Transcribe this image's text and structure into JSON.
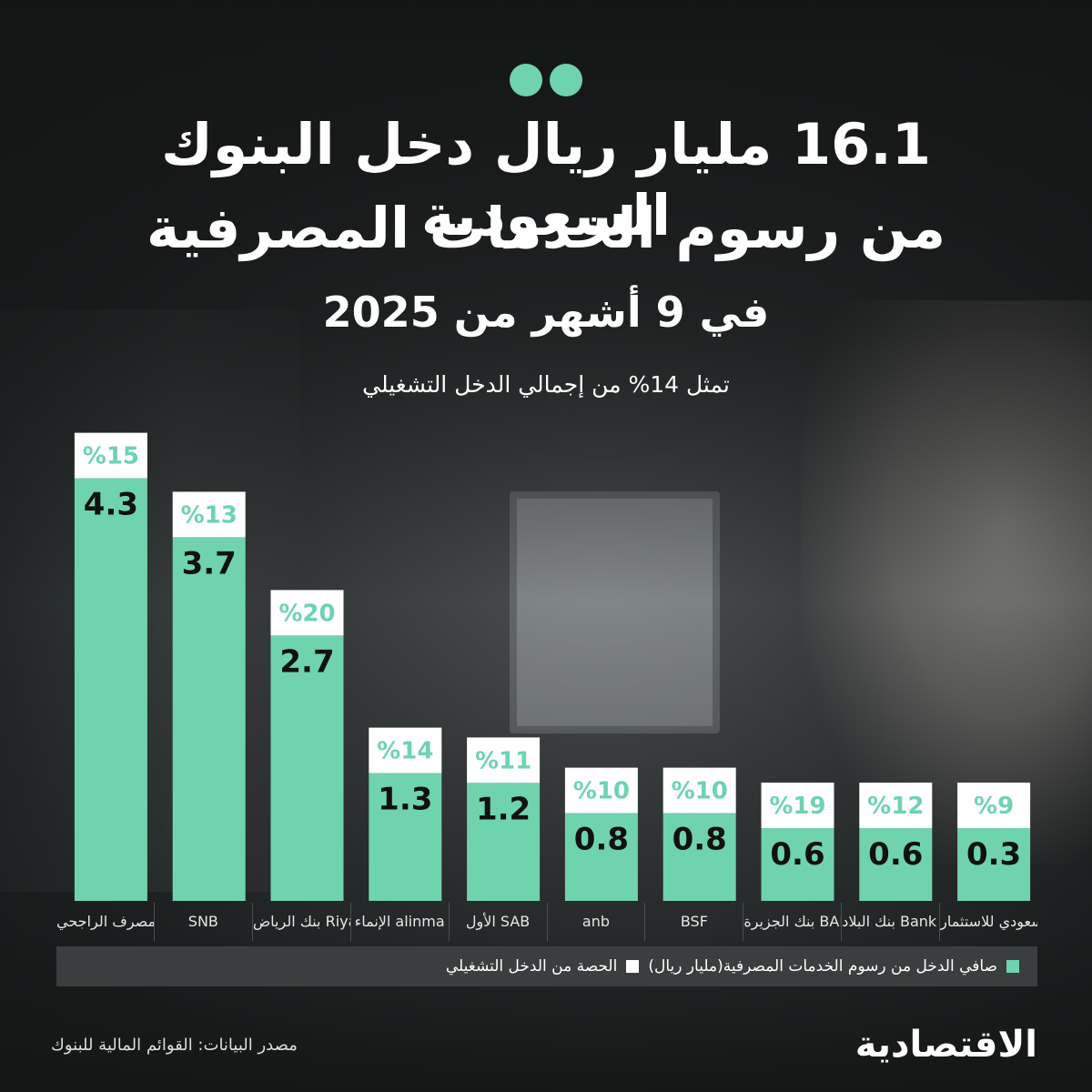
{
  "header": {
    "title_line1": "16.1 مليار ريال دخل البنوك السعودية",
    "title_line2": "من رسوم الخدمات المصرفية",
    "title_line3": "في 9 أشهر من 2025",
    "subtitle": "تمثل 14% من إجمالي الدخل التشغيلي"
  },
  "chart_data": {
    "type": "bar",
    "categories": [
      "مصرف الراجحي alrajhi bank",
      "SNB",
      "بنك الرياض Riyad Bank",
      "الإنماء alinma",
      "الأول SAB",
      "anb",
      "BSF",
      "بنك الجزيرة BANK ALJAZIRA",
      "بنك البلاد Bank Albilad",
      "البنك السعودي للاستثمار"
    ],
    "series": [
      {
        "name": "صافي الدخل من رسوم الخدمات المصرفية (مليار ريال)",
        "values": [
          4.3,
          3.7,
          2.7,
          1.3,
          1.2,
          0.8,
          0.8,
          0.6,
          0.6,
          0.3
        ]
      },
      {
        "name": "الحصة من الدخل التشغيلي",
        "values": [
          15,
          13,
          20,
          14,
          11,
          10,
          10,
          19,
          12,
          9
        ]
      }
    ],
    "value_labels": [
      "4.3",
      "3.7",
      "2.7",
      "1.3",
      "1.2",
      "0.8",
      "0.8",
      "0.6",
      "0.6",
      "0.3"
    ],
    "share_labels": [
      "%15",
      "%13",
      "%20",
      "%14",
      "%11",
      "%10",
      "%10",
      "%19",
      "%12",
      "%9"
    ],
    "bar_heights": [
      4.3,
      3.7,
      2.7,
      1.3,
      1.2,
      0.8,
      0.8,
      0.6,
      0.6,
      0.3
    ],
    "colors": {
      "bar": "#6fd3ae",
      "cap": "#ffffff",
      "label": "#111111"
    }
  },
  "legend": {
    "green_label": "صافي الدخل من رسوم الخدمات المصرفية(مليار ريال)",
    "white_label": "الحصة من الدخل التشغيلي"
  },
  "footer": {
    "brand": "الاقتصادية",
    "source": "مصدر البيانات: القوائم المالية للبنوك"
  }
}
